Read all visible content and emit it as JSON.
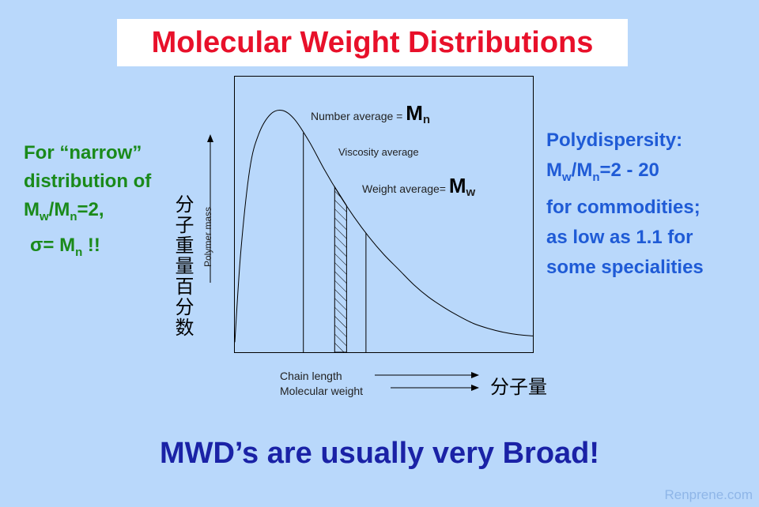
{
  "title": "Molecular Weight Distributions",
  "left_note": {
    "line1": "For “narrow”",
    "line2": "distribution of",
    "line3_prefix": "M",
    "line3_sub1": "w",
    "line3_mid": "/M",
    "line3_sub2": "n",
    "line3_suffix": "=2,",
    "line4_prefix": "σ= M",
    "line4_sub": "n",
    "line4_suffix": " !!"
  },
  "right_note": {
    "line1": "Polydispersity:",
    "line2_prefix": "M",
    "line2_sub1": "w",
    "line2_mid": "/M",
    "line2_sub2": "n",
    "line2_suffix": "=2 - 20",
    "line3": "for commodities;",
    "line4": "as low as 1.1 for",
    "line5": "some specialities"
  },
  "chart_data": {
    "type": "area",
    "title": "",
    "xlabel": "Chain length",
    "xlabel2": "Molecular weight",
    "xlabel_cn": "分子量",
    "ylabel": "Polymer mass",
    "ylabel_cn": "分子重量百分数",
    "curve": {
      "x": [
        0,
        0.02,
        0.05,
        0.08,
        0.12,
        0.16,
        0.2,
        0.25,
        0.3,
        0.35,
        0.4,
        0.45,
        0.5,
        0.55,
        0.6,
        0.65,
        0.7,
        0.75,
        0.8,
        0.85,
        0.9,
        0.95,
        1.0
      ],
      "y": [
        0.04,
        0.4,
        0.73,
        0.87,
        0.95,
        0.965,
        0.93,
        0.84,
        0.73,
        0.63,
        0.54,
        0.46,
        0.39,
        0.33,
        0.27,
        0.22,
        0.18,
        0.145,
        0.115,
        0.095,
        0.08,
        0.07,
        0.065
      ]
    },
    "averages": [
      {
        "name": "number",
        "label": "Number average = ",
        "symbol": "M",
        "sub": "n",
        "x": 0.23
      },
      {
        "name": "viscosity",
        "label": "Viscosity average",
        "x_band": [
          0.335,
          0.375
        ]
      },
      {
        "name": "weight",
        "label": "Weight average= ",
        "symbol": "M",
        "sub": "w",
        "x": 0.44
      }
    ],
    "xlim": [
      0,
      1
    ],
    "ylim": [
      0,
      1.1
    ]
  },
  "bottom_statement": "MWD’s are usually very Broad!",
  "watermark": "Renprene.com"
}
